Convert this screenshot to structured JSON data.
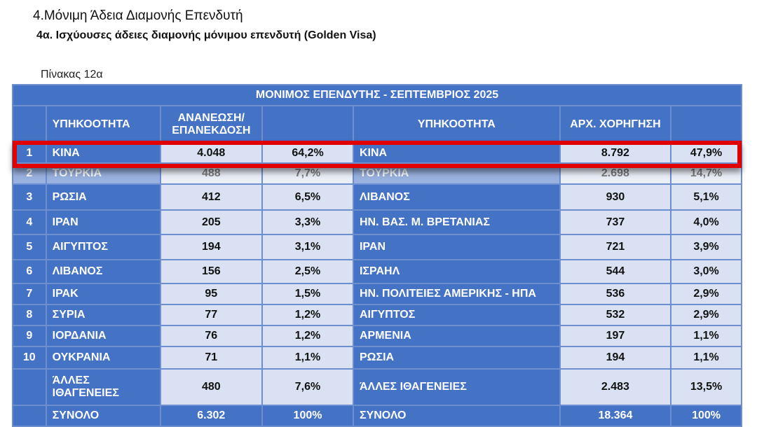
{
  "heading": "4.Μόνιμη Άδεια Διαμονής  Επενδυτή",
  "subheading": "4α. Ισχύουσες άδειες διαμονής μόνιμου επενδυτή (Golden Visa)",
  "caption": "Πίνακας 12α",
  "table": {
    "title": "ΜΟΝΙΜΟΣ ΕΠΕΝΔΥΤΗΣ - ΣΕΠΤΕΜΒΡΙΟΣ 2025",
    "headers": {
      "nat1": "ΥΠΗΚΟΟΤΗΤΑ",
      "renew1": "ΑΝΑΝΕΩΣΗ/",
      "renew2": "ΕΠΑΝΕΚΔΟΣΗ",
      "nat2": "ΥΠΗΚΟΟΤΗΤΑ",
      "initial": "ΑΡΧ. ΧΟΡΗΓΗΣΗ"
    },
    "rows": [
      {
        "n": "1",
        "a": "ΚΙΝΑ",
        "av": "4.048",
        "ap": "64,2%",
        "b": "ΚΙΝΑ",
        "bv": "8.792",
        "bp": "47,9%"
      },
      {
        "n": "2",
        "a": "ΤΟΥΡΚΙΑ",
        "av": "488",
        "ap": "7,7%",
        "b": "ΤΟΥΡΚΙΑ",
        "bv": "2.698",
        "bp": "14,7%"
      },
      {
        "n": "3",
        "a": "ΡΩΣΙΑ",
        "av": "412",
        "ap": "6,5%",
        "b": "ΛΙΒΑΝΟΣ",
        "bv": "930",
        "bp": "5,1%"
      },
      {
        "n": "4",
        "a": "ΙΡΑΝ",
        "av": "205",
        "ap": "3,3%",
        "b": "ΗΝ. ΒΑΣ. Μ. ΒΡΕΤΑΝΙΑΣ",
        "bv": "737",
        "bp": "4,0%"
      },
      {
        "n": "5",
        "a": "ΑΙΓΥΠΤΟΣ",
        "av": "194",
        "ap": "3,1%",
        "b": "ΙΡΑΝ",
        "bv": "721",
        "bp": "3,9%"
      },
      {
        "n": "6",
        "a": "ΛΙΒΑΝΟΣ",
        "av": "156",
        "ap": "2,5%",
        "b": "ΙΣΡΑΗΛ",
        "bv": "544",
        "bp": "3,0%"
      },
      {
        "n": "7",
        "a": "ΙΡΑΚ",
        "av": "95",
        "ap": "1,5%",
        "b": "ΗΝ. ΠΟΛΙΤΕΙΕΣ ΑΜΕΡΙΚΗΣ - ΗΠΑ",
        "bv": "536",
        "bp": "2,9%"
      },
      {
        "n": "8",
        "a": "ΣΥΡΙΑ",
        "av": "77",
        "ap": "1,2%",
        "b": "ΑΙΓΥΠΤΟΣ",
        "bv": "532",
        "bp": "2,9%"
      },
      {
        "n": "9",
        "a": "ΙΟΡΔΑΝΙΑ",
        "av": "76",
        "ap": "1,2%",
        "b": "ΑΡΜΕΝΙΑ",
        "bv": "197",
        "bp": "1,1%"
      },
      {
        "n": "10",
        "a": "ΟΥΚΡΑΝΙΑ",
        "av": "71",
        "ap": "1,1%",
        "b": "ΡΩΣΙΑ",
        "bv": "194",
        "bp": "1,1%"
      }
    ],
    "others": {
      "a1": "ΆΛΛΕΣ",
      "a2": "ΙΘΑΓΕΝΕΙΕΣ",
      "av": "480",
      "ap": "7,6%",
      "b": "ΆΛΛΕΣ ΙΘΑΓΕΝΕΙΕΣ",
      "bv": "2.483",
      "bp": "13,5%"
    },
    "total": {
      "a": "ΣΥΝΟΛΟ",
      "av": "6.302",
      "ap": "100%",
      "b": "ΣΥΝΟΛΟ",
      "bv": "18.364",
      "bp": "100%"
    }
  },
  "highlight_color": "#e00000"
}
